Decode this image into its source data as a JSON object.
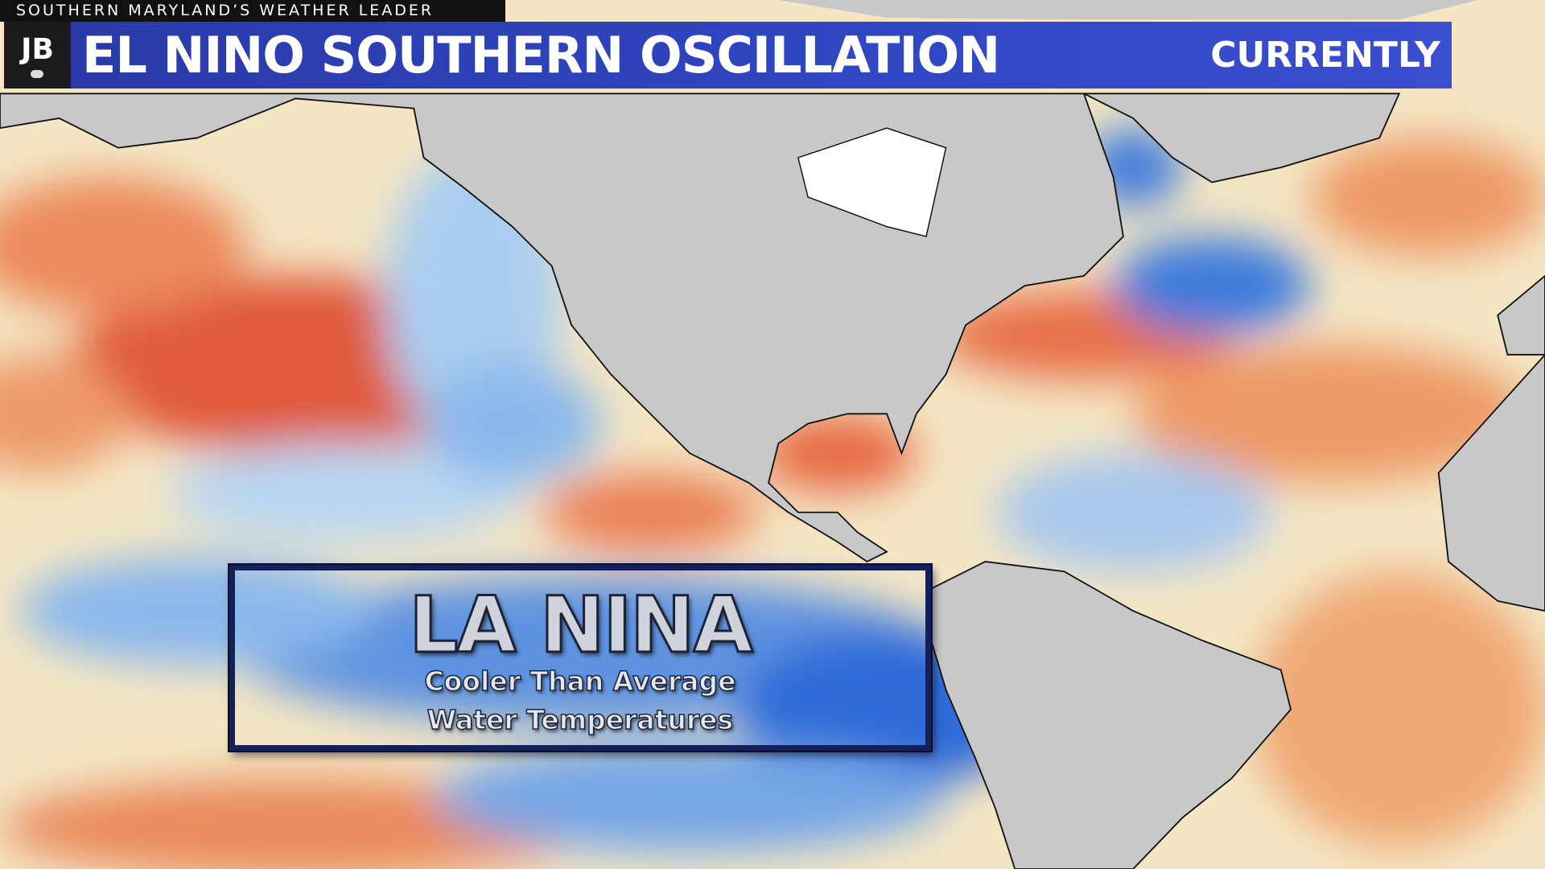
{
  "header": {
    "tagline": "SOUTHERN MARYLAND’S WEATHER LEADER",
    "logo": "JB",
    "title": "EL NINO SOUTHERN OSCILLATION",
    "label": "CURRENTLY"
  },
  "callout": {
    "title": "LA NINA",
    "lines": [
      "Cooler Than Average",
      "Water Temperatures"
    ]
  }
}
